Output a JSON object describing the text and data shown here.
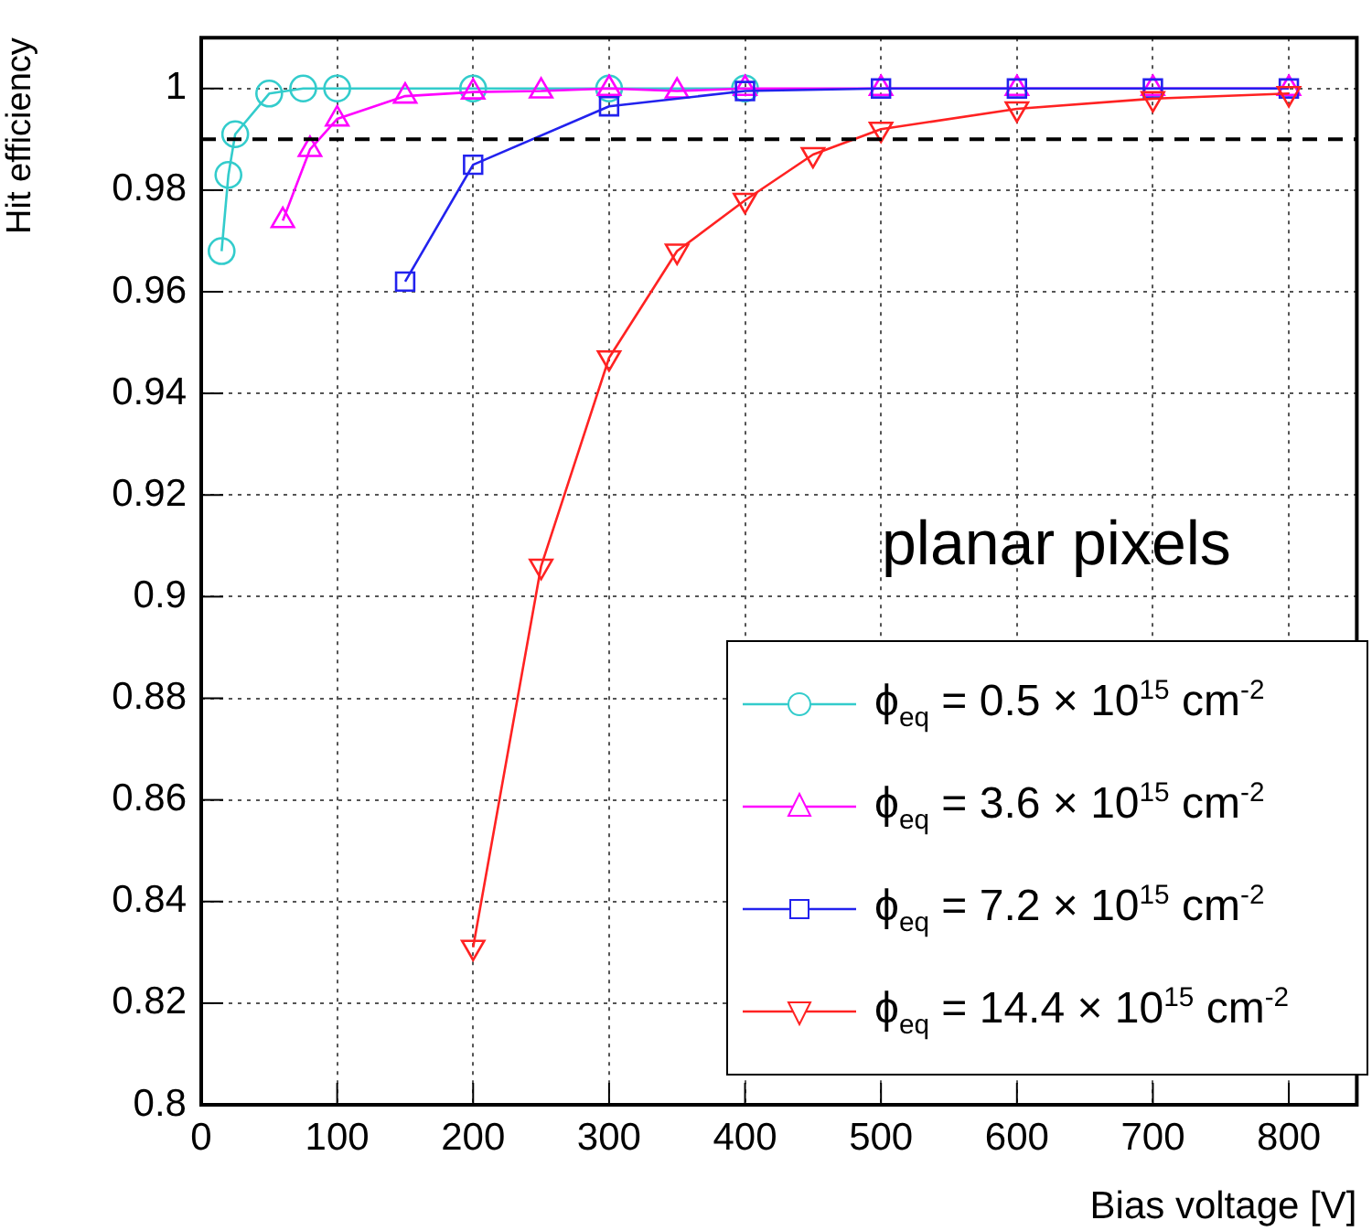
{
  "chart_data": {
    "type": "line",
    "xlabel": "Bias voltage [V]",
    "ylabel": "Hit efficiency",
    "xlim": [
      0,
      850
    ],
    "xticks": [
      0,
      100,
      200,
      300,
      400,
      500,
      600,
      700,
      800
    ],
    "ylim": [
      0.8,
      1.01
    ],
    "yticks": [
      0.8,
      0.82,
      0.84,
      0.86,
      0.88,
      0.9,
      0.92,
      0.94,
      0.96,
      0.98,
      1
    ],
    "grid": true,
    "legend": "bottom right",
    "series": [
      {
        "name": "ϕ$_{eq}$ = 0.5 × 10$^{15}$ cm$^{-2}$",
        "color": "#33cccc",
        "marker": "circle",
        "x": [
          15,
          20,
          25,
          50,
          75,
          100,
          200,
          300,
          400
        ],
        "values": [
          0.968,
          0.983,
          0.991,
          0.999,
          1.0,
          1.0,
          1.0,
          1.0,
          1.0
        ]
      },
      {
        "name": "ϕ$_{eq}$ = 3.6 × 10$^{15}$ cm$^{-2}$",
        "color": "#ff00ff",
        "marker": "triangle",
        "x": [
          60,
          80,
          100,
          150,
          200,
          250,
          300,
          350,
          400,
          500,
          600,
          700,
          800
        ],
        "values": [
          0.974,
          0.988,
          0.994,
          0.9985,
          0.9993,
          0.9995,
          1.0,
          0.9995,
          1.0,
          1.0,
          1.0,
          1.0,
          1.0
        ]
      },
      {
        "name": "ϕ$_{eq}$ = 7.2 × 10$^{15}$ cm$^{-2}$",
        "color": "#2222ee",
        "marker": "square",
        "x": [
          150,
          200,
          300,
          400,
          500,
          600,
          700,
          800
        ],
        "values": [
          0.962,
          0.985,
          0.9965,
          0.9995,
          1.0,
          1.0,
          1.0,
          1.0
        ]
      },
      {
        "name": "ϕ$_{eq}$ = 14.4 × 10$^{15}$ cm$^{-2}$",
        "color": "#ff2222",
        "marker": "triangle-down",
        "x": [
          200,
          250,
          300,
          350,
          400,
          450,
          500,
          600,
          700,
          800
        ],
        "values": [
          0.831,
          0.906,
          0.947,
          0.968,
          0.978,
          0.987,
          0.992,
          0.996,
          0.998,
          0.999
        ]
      }
    ],
    "ref_lines": [
      {
        "axis": "y",
        "value": 0.99,
        "color": "#000000",
        "line_style": "dashed"
      }
    ],
    "annotations": [
      "planar pixels"
    ]
  }
}
